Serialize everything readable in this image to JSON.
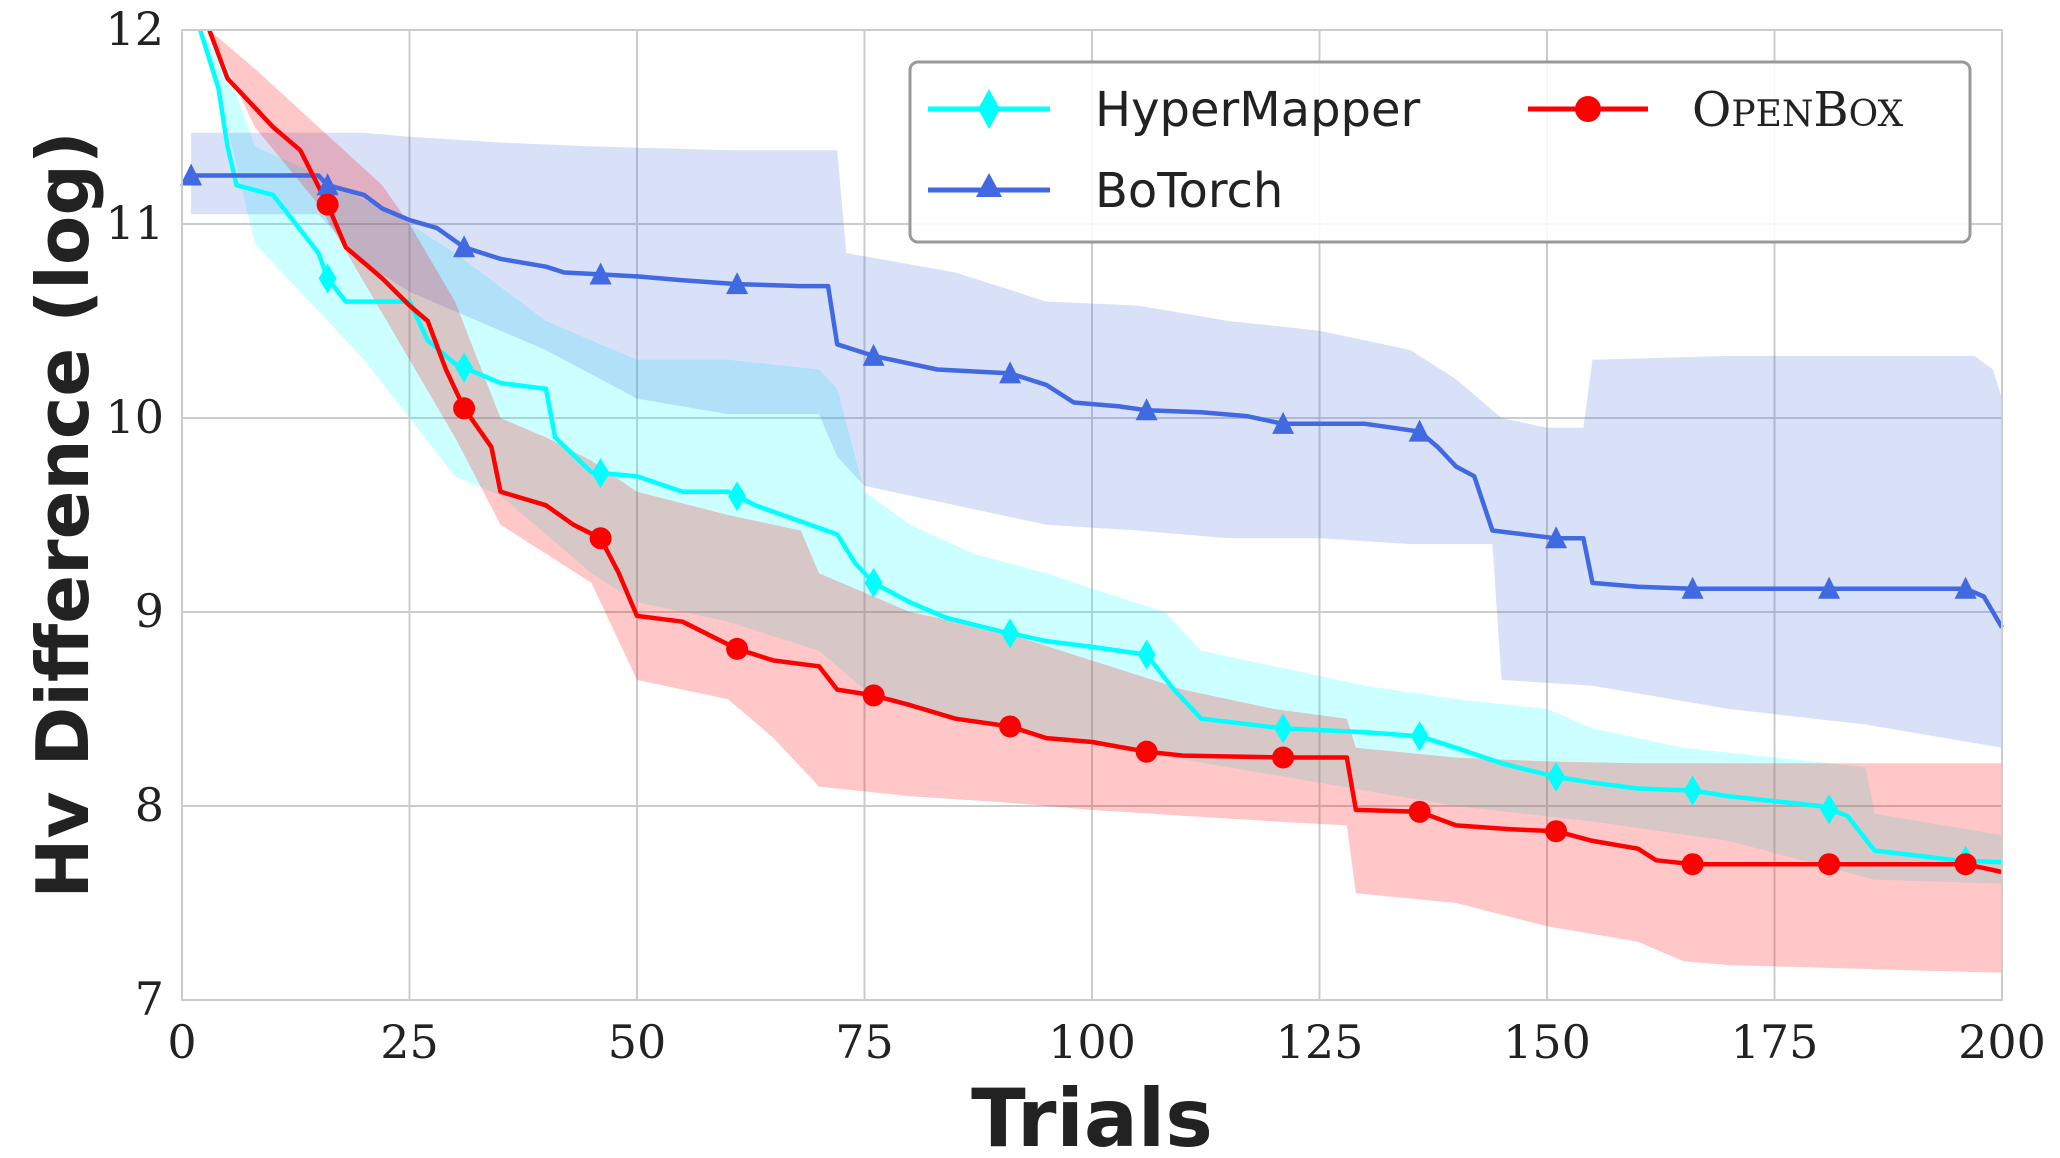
{
  "chart_data": {
    "type": "line",
    "xlabel": "Trials",
    "ylabel": "Hv Difference (log)",
    "xlim": [
      0,
      200
    ],
    "ylim": [
      7,
      12
    ],
    "xticks": [
      0,
      25,
      50,
      75,
      100,
      125,
      150,
      175,
      200
    ],
    "yticks": [
      7,
      8,
      9,
      10,
      11,
      12
    ],
    "grid": true,
    "legend_position": "top-right",
    "colors": {
      "HyperMapper": "#00ffff",
      "BoTorch": "#4169e1",
      "OpenBox": "#ff0000"
    },
    "series": [
      {
        "name": "HyperMapper",
        "marker": "diamond",
        "marker_x": [
          16,
          31,
          46,
          61,
          76,
          91,
          106,
          121,
          136,
          151,
          166,
          181,
          196
        ],
        "mean": [
          [
            2,
            12.0
          ],
          [
            4,
            11.7
          ],
          [
            5,
            11.4
          ],
          [
            6,
            11.2
          ],
          [
            10,
            11.15
          ],
          [
            15,
            10.85
          ],
          [
            16,
            10.72
          ],
          [
            18,
            10.6
          ],
          [
            25,
            10.6
          ],
          [
            27,
            10.4
          ],
          [
            30,
            10.28
          ],
          [
            35,
            10.18
          ],
          [
            40,
            10.15
          ],
          [
            41,
            9.9
          ],
          [
            45,
            9.72
          ],
          [
            50,
            9.7
          ],
          [
            55,
            9.62
          ],
          [
            60,
            9.62
          ],
          [
            63,
            9.55
          ],
          [
            66,
            9.5
          ],
          [
            72,
            9.4
          ],
          [
            74,
            9.25
          ],
          [
            76,
            9.15
          ],
          [
            80,
            9.05
          ],
          [
            84,
            8.97
          ],
          [
            90,
            8.9
          ],
          [
            95,
            8.85
          ],
          [
            100,
            8.82
          ],
          [
            106,
            8.78
          ],
          [
            109,
            8.6
          ],
          [
            112,
            8.45
          ],
          [
            121,
            8.4
          ],
          [
            130,
            8.38
          ],
          [
            136,
            8.36
          ],
          [
            140,
            8.3
          ],
          [
            145,
            8.22
          ],
          [
            151,
            8.15
          ],
          [
            155,
            8.12
          ],
          [
            160,
            8.09
          ],
          [
            166,
            8.08
          ],
          [
            170,
            8.05
          ],
          [
            180,
            8.0
          ],
          [
            183,
            7.95
          ],
          [
            186,
            7.77
          ],
          [
            195,
            7.72
          ],
          [
            200,
            7.71
          ]
        ],
        "upper": [
          [
            2,
            12.0
          ],
          [
            5,
            11.8
          ],
          [
            8,
            11.4
          ],
          [
            15,
            11.25
          ],
          [
            25,
            11.0
          ],
          [
            30,
            10.85
          ],
          [
            40,
            10.5
          ],
          [
            50,
            10.3
          ],
          [
            60,
            10.3
          ],
          [
            70,
            10.25
          ],
          [
            72,
            10.15
          ],
          [
            75,
            9.62
          ],
          [
            80,
            9.45
          ],
          [
            87,
            9.3
          ],
          [
            95,
            9.2
          ],
          [
            100,
            9.12
          ],
          [
            108,
            9.0
          ],
          [
            112,
            8.8
          ],
          [
            120,
            8.72
          ],
          [
            130,
            8.62
          ],
          [
            140,
            8.55
          ],
          [
            150,
            8.5
          ],
          [
            155,
            8.4
          ],
          [
            165,
            8.3
          ],
          [
            185,
            8.2
          ],
          [
            186,
            7.96
          ],
          [
            200,
            7.85
          ]
        ],
        "lower": [
          [
            2,
            12.0
          ],
          [
            5,
            11.5
          ],
          [
            8,
            10.9
          ],
          [
            12,
            10.7
          ],
          [
            15,
            10.55
          ],
          [
            20,
            10.3
          ],
          [
            25,
            10.0
          ],
          [
            30,
            9.7
          ],
          [
            35,
            9.6
          ],
          [
            40,
            9.4
          ],
          [
            45,
            9.2
          ],
          [
            50,
            9.05
          ],
          [
            60,
            8.95
          ],
          [
            70,
            8.8
          ],
          [
            75,
            8.6
          ],
          [
            80,
            8.5
          ],
          [
            90,
            8.4
          ],
          [
            100,
            8.32
          ],
          [
            110,
            8.24
          ],
          [
            120,
            8.16
          ],
          [
            130,
            8.08
          ],
          [
            140,
            8.0
          ],
          [
            155,
            7.92
          ],
          [
            170,
            7.82
          ],
          [
            186,
            7.62
          ],
          [
            200,
            7.6
          ]
        ]
      },
      {
        "name": "BoTorch",
        "marker": "triangle",
        "marker_x": [
          1,
          16,
          31,
          46,
          61,
          76,
          91,
          106,
          121,
          136,
          151,
          166,
          181,
          196
        ],
        "mean": [
          [
            1,
            11.25
          ],
          [
            15,
            11.25
          ],
          [
            16,
            11.2
          ],
          [
            20,
            11.15
          ],
          [
            22,
            11.08
          ],
          [
            25,
            11.02
          ],
          [
            28,
            10.98
          ],
          [
            31,
            10.88
          ],
          [
            35,
            10.82
          ],
          [
            40,
            10.78
          ],
          [
            42,
            10.75
          ],
          [
            46,
            10.74
          ],
          [
            50,
            10.73
          ],
          [
            55,
            10.71
          ],
          [
            61,
            10.69
          ],
          [
            68,
            10.68
          ],
          [
            71,
            10.68
          ],
          [
            72,
            10.38
          ],
          [
            74,
            10.35
          ],
          [
            76,
            10.32
          ],
          [
            80,
            10.28
          ],
          [
            83,
            10.25
          ],
          [
            91,
            10.23
          ],
          [
            95,
            10.17
          ],
          [
            98,
            10.08
          ],
          [
            103,
            10.06
          ],
          [
            106,
            10.04
          ],
          [
            112,
            10.03
          ],
          [
            117,
            10.01
          ],
          [
            121,
            9.97
          ],
          [
            130,
            9.97
          ],
          [
            136,
            9.93
          ],
          [
            138,
            9.85
          ],
          [
            140,
            9.75
          ],
          [
            142,
            9.7
          ],
          [
            144,
            9.42
          ],
          [
            151,
            9.38
          ],
          [
            154,
            9.38
          ],
          [
            155,
            9.15
          ],
          [
            160,
            9.13
          ],
          [
            166,
            9.12
          ],
          [
            196,
            9.12
          ],
          [
            198,
            9.08
          ],
          [
            200,
            8.92
          ]
        ],
        "upper": [
          [
            1,
            11.47
          ],
          [
            20,
            11.47
          ],
          [
            25,
            11.45
          ],
          [
            35,
            11.42
          ],
          [
            45,
            11.4
          ],
          [
            60,
            11.38
          ],
          [
            72,
            11.38
          ],
          [
            73,
            10.85
          ],
          [
            85,
            10.75
          ],
          [
            95,
            10.6
          ],
          [
            105,
            10.58
          ],
          [
            115,
            10.5
          ],
          [
            125,
            10.45
          ],
          [
            135,
            10.35
          ],
          [
            140,
            10.2
          ],
          [
            145,
            10.0
          ],
          [
            150,
            9.95
          ],
          [
            154,
            9.95
          ],
          [
            155,
            10.3
          ],
          [
            170,
            10.32
          ],
          [
            197,
            10.32
          ],
          [
            199,
            10.25
          ],
          [
            200,
            10.1
          ]
        ],
        "lower": [
          [
            1,
            11.05
          ],
          [
            15,
            11.05
          ],
          [
            20,
            10.8
          ],
          [
            25,
            10.65
          ],
          [
            30,
            10.55
          ],
          [
            40,
            10.35
          ],
          [
            50,
            10.1
          ],
          [
            60,
            10.02
          ],
          [
            70,
            10.02
          ],
          [
            72,
            9.8
          ],
          [
            75,
            9.65
          ],
          [
            85,
            9.55
          ],
          [
            95,
            9.45
          ],
          [
            105,
            9.42
          ],
          [
            115,
            9.38
          ],
          [
            125,
            9.38
          ],
          [
            135,
            9.35
          ],
          [
            144,
            9.35
          ],
          [
            145,
            8.65
          ],
          [
            155,
            8.62
          ],
          [
            170,
            8.5
          ],
          [
            185,
            8.42
          ],
          [
            200,
            8.3
          ]
        ]
      },
      {
        "name": "OpenBox",
        "marker": "circle",
        "marker_x": [
          16,
          31,
          46,
          61,
          76,
          91,
          106,
          121,
          136,
          151,
          166,
          181,
          196
        ],
        "mean": [
          [
            3,
            12.0
          ],
          [
            5,
            11.75
          ],
          [
            8,
            11.6
          ],
          [
            10,
            11.5
          ],
          [
            13,
            11.38
          ],
          [
            16,
            11.1
          ],
          [
            18,
            10.88
          ],
          [
            22,
            10.72
          ],
          [
            25,
            10.58
          ],
          [
            27,
            10.5
          ],
          [
            29,
            10.25
          ],
          [
            31,
            10.05
          ],
          [
            34,
            9.85
          ],
          [
            35,
            9.62
          ],
          [
            40,
            9.55
          ],
          [
            43,
            9.45
          ],
          [
            46,
            9.38
          ],
          [
            48,
            9.2
          ],
          [
            50,
            8.98
          ],
          [
            55,
            8.95
          ],
          [
            58,
            8.88
          ],
          [
            61,
            8.81
          ],
          [
            65,
            8.75
          ],
          [
            70,
            8.72
          ],
          [
            72,
            8.6
          ],
          [
            76,
            8.57
          ],
          [
            80,
            8.52
          ],
          [
            85,
            8.45
          ],
          [
            91,
            8.41
          ],
          [
            95,
            8.35
          ],
          [
            100,
            8.33
          ],
          [
            106,
            8.28
          ],
          [
            110,
            8.26
          ],
          [
            121,
            8.25
          ],
          [
            128,
            8.25
          ],
          [
            129,
            7.98
          ],
          [
            136,
            7.97
          ],
          [
            140,
            7.9
          ],
          [
            146,
            7.88
          ],
          [
            151,
            7.87
          ],
          [
            155,
            7.82
          ],
          [
            160,
            7.78
          ],
          [
            162,
            7.72
          ],
          [
            166,
            7.7
          ],
          [
            196,
            7.7
          ],
          [
            198,
            7.68
          ],
          [
            200,
            7.66
          ]
        ],
        "upper": [
          [
            3,
            12.0
          ],
          [
            8,
            11.8
          ],
          [
            15,
            11.5
          ],
          [
            22,
            11.2
          ],
          [
            25,
            11.0
          ],
          [
            30,
            10.6
          ],
          [
            35,
            10.0
          ],
          [
            40,
            9.9
          ],
          [
            45,
            9.78
          ],
          [
            50,
            9.62
          ],
          [
            60,
            9.5
          ],
          [
            68,
            9.42
          ],
          [
            70,
            9.2
          ],
          [
            75,
            9.1
          ],
          [
            80,
            9.0
          ],
          [
            90,
            8.9
          ],
          [
            100,
            8.75
          ],
          [
            110,
            8.6
          ],
          [
            120,
            8.5
          ],
          [
            128,
            8.45
          ],
          [
            129,
            8.3
          ],
          [
            140,
            8.25
          ],
          [
            150,
            8.23
          ],
          [
            160,
            8.22
          ],
          [
            170,
            8.22
          ],
          [
            200,
            8.22
          ]
        ],
        "lower": [
          [
            3,
            12.0
          ],
          [
            8,
            11.5
          ],
          [
            15,
            11.1
          ],
          [
            20,
            10.7
          ],
          [
            25,
            10.3
          ],
          [
            30,
            9.9
          ],
          [
            35,
            9.45
          ],
          [
            40,
            9.3
          ],
          [
            45,
            9.15
          ],
          [
            50,
            8.65
          ],
          [
            60,
            8.55
          ],
          [
            65,
            8.35
          ],
          [
            70,
            8.1
          ],
          [
            80,
            8.05
          ],
          [
            90,
            8.02
          ],
          [
            100,
            7.98
          ],
          [
            110,
            7.95
          ],
          [
            120,
            7.92
          ],
          [
            128,
            7.9
          ],
          [
            129,
            7.55
          ],
          [
            140,
            7.5
          ],
          [
            150,
            7.38
          ],
          [
            160,
            7.3
          ],
          [
            165,
            7.2
          ],
          [
            170,
            7.18
          ],
          [
            200,
            7.14
          ]
        ]
      }
    ],
    "legend": [
      {
        "label": "HyperMapper",
        "series": "HyperMapper"
      },
      {
        "label": "OpenBox",
        "series": "OpenBox"
      },
      {
        "label": "BoTorch",
        "series": "BoTorch"
      }
    ]
  }
}
